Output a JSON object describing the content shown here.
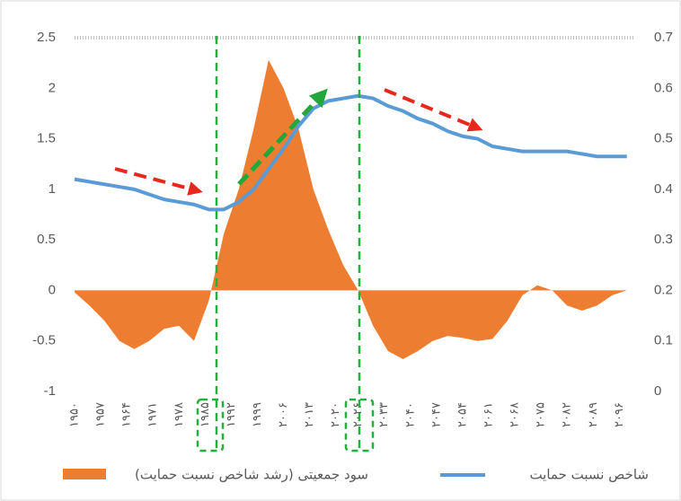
{
  "chart_data": {
    "type": "area-line",
    "x": [
      1950,
      1954,
      1958,
      1962,
      1966,
      1970,
      1974,
      1978,
      1982,
      1986,
      1990,
      1994,
      1998,
      2002,
      2006,
      2010,
      2014,
      2018,
      2022,
      2026,
      2030,
      2034,
      2038,
      2042,
      2046,
      2050,
      2054,
      2058,
      2062,
      2066,
      2070,
      2074,
      2078,
      2082,
      2086,
      2090,
      2094,
      2098
    ],
    "xlim": [
      1950,
      2100
    ],
    "xticks": [
      {
        "value": 1950,
        "label": "۱۹۵۰"
      },
      {
        "value": 1957,
        "label": "۱۹۵۷"
      },
      {
        "value": 1964,
        "label": "۱۹۶۴"
      },
      {
        "value": 1971,
        "label": "۱۹۷۱"
      },
      {
        "value": 1978,
        "label": "۱۹۷۸"
      },
      {
        "value": 1985,
        "label": "۱۹۸۵"
      },
      {
        "value": 1992,
        "label": "۱۹۹۲"
      },
      {
        "value": 1999,
        "label": "۱۹۹۹"
      },
      {
        "value": 2006,
        "label": "۲۰۰۶"
      },
      {
        "value": 2013,
        "label": "۲۰۱۳"
      },
      {
        "value": 2020,
        "label": "۲۰۲۰"
      },
      {
        "value": 2026,
        "label": "۲۰۲۶"
      },
      {
        "value": 2033,
        "label": "۲۰۳۳"
      },
      {
        "value": 2040,
        "label": "۲۰۴۰"
      },
      {
        "value": 2047,
        "label": "۲۰۴۷"
      },
      {
        "value": 2054,
        "label": "۲۰۵۴"
      },
      {
        "value": 2061,
        "label": "۲۰۶۱"
      },
      {
        "value": 2068,
        "label": "۲۰۶۸"
      },
      {
        "value": 2075,
        "label": "۲۰۷۵"
      },
      {
        "value": 2082,
        "label": "۲۰۸۲"
      },
      {
        "value": 2089,
        "label": "۲۰۸۹"
      },
      {
        "value": 2096,
        "label": "۲۰۹۶"
      }
    ],
    "ylim": [
      -1,
      2.5
    ],
    "yticks": [
      -1,
      -0.5,
      0,
      0.5,
      1,
      1.5,
      2,
      2.5
    ],
    "y2lim": [
      0,
      0.7
    ],
    "y2ticks": [
      0,
      0.1,
      0.2,
      0.3,
      0.4,
      0.5,
      0.6,
      0.7
    ],
    "series": [
      {
        "name": "سود جمعیتی (رشد شاخص نسبت حمایت)",
        "type": "area",
        "color": "#ed7d31",
        "values": [
          -0.02,
          -0.15,
          -0.3,
          -0.5,
          -0.58,
          -0.5,
          -0.38,
          -0.35,
          -0.5,
          -0.1,
          0.56,
          1.0,
          1.6,
          2.28,
          2.0,
          1.6,
          1.0,
          0.6,
          0.25,
          0.0,
          -0.35,
          -0.6,
          -0.68,
          -0.6,
          -0.5,
          -0.45,
          -0.47,
          -0.5,
          -0.48,
          -0.3,
          -0.05,
          0.05,
          0.0,
          -0.15,
          -0.2,
          -0.15,
          -0.05,
          0.0
        ]
      },
      {
        "name": "شاخص نسبت حمایت",
        "type": "line",
        "axis": "y2",
        "color": "#5b9bd5",
        "values": [
          0.42,
          0.415,
          0.41,
          0.405,
          0.4,
          0.39,
          0.38,
          0.375,
          0.37,
          0.36,
          0.36,
          0.375,
          0.4,
          0.44,
          0.48,
          0.525,
          0.56,
          0.575,
          0.58,
          0.585,
          0.58,
          0.565,
          0.555,
          0.54,
          0.53,
          0.515,
          0.505,
          0.5,
          0.485,
          0.48,
          0.475,
          0.475,
          0.475,
          0.475,
          0.47,
          0.465,
          0.465,
          0.465
        ]
      }
    ]
  }
}
